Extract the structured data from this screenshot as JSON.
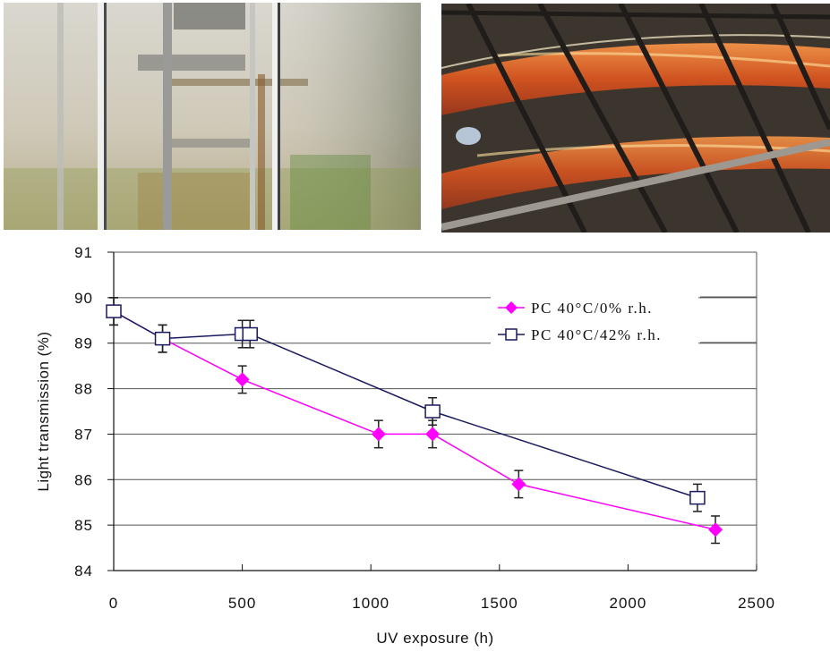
{
  "photos": {
    "left": {
      "description": "Fogged, algae-stained polycarbonate greenhouse wall with metal shelving",
      "icon": "greenhouse-photo"
    },
    "right": {
      "description": "Aged, orange-yellowed translucent roof panels in a steel-truss hall",
      "icon": "roof-panels-photo"
    }
  },
  "chart_data": {
    "type": "line",
    "title": "",
    "xlabel": "UV exposure (h)",
    "ylabel": "Light transmission (%)",
    "xlim": [
      0,
      2500
    ],
    "ylim": [
      84,
      91
    ],
    "x_ticks": [
      "0",
      "500",
      "1000",
      "1500",
      "2000",
      "2500"
    ],
    "y_ticks": [
      "84",
      "85",
      "86",
      "87",
      "88",
      "89",
      "90",
      "91"
    ],
    "grid": "horizontal",
    "legend_position": "upper right",
    "series": [
      {
        "name": "PC 40°C/0% r.h.",
        "color": "#ff00ff",
        "marker": "diamond-filled",
        "x": [
          0,
          190,
          500,
          1030,
          1240,
          1575,
          2340
        ],
        "y": [
          89.7,
          89.1,
          88.2,
          87.0,
          87.0,
          85.9,
          84.9
        ],
        "error": [
          0.3,
          0.3,
          0.3,
          0.3,
          0.3,
          0.3,
          0.3
        ]
      },
      {
        "name": "PC 40°C/42% r.h.",
        "color": "#1a1a5e",
        "marker": "square-open",
        "x": [
          0,
          190,
          500,
          530,
          1240,
          2270
        ],
        "y": [
          89.7,
          89.1,
          89.2,
          89.2,
          87.5,
          85.6
        ],
        "error": [
          0.3,
          0.3,
          0.3,
          0.3,
          0.3,
          0.3
        ]
      }
    ]
  }
}
